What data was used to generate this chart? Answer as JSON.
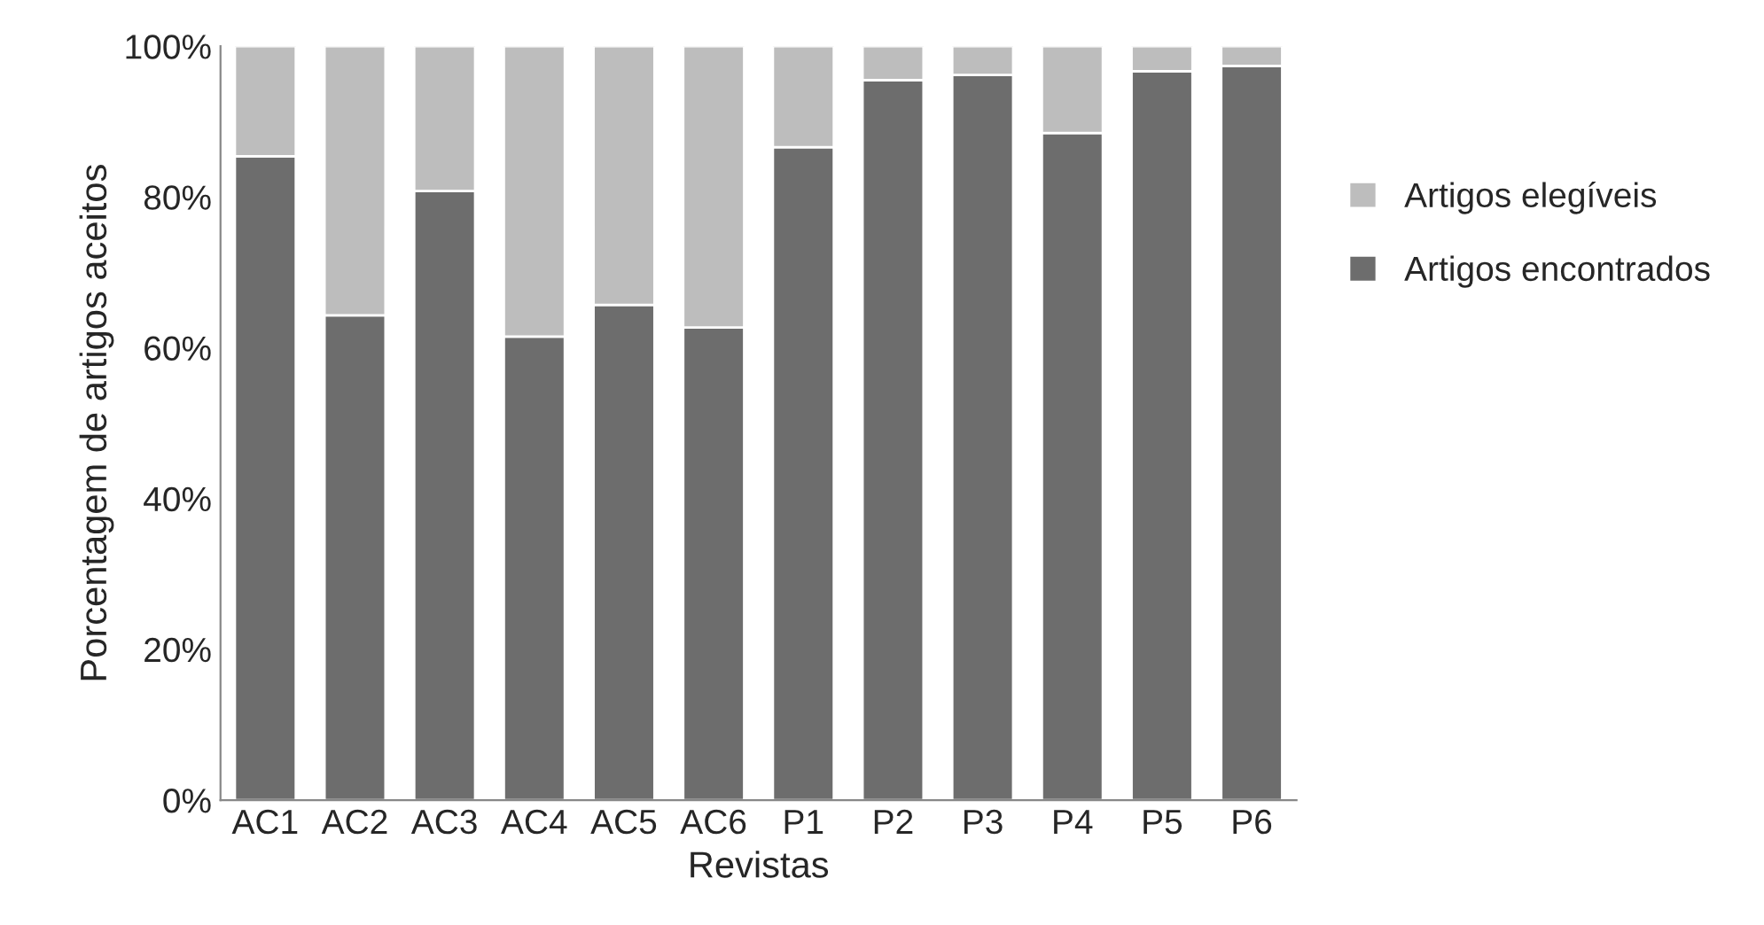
{
  "chart_data": {
    "type": "bar",
    "stacked": true,
    "xlabel": "Revistas",
    "ylabel": "Porcentagem de artigos aceitos",
    "categories": [
      "AC1",
      "AC2",
      "AC3",
      "AC4",
      "AC5",
      "AC6",
      "P1",
      "P2",
      "P3",
      "P4",
      "P5",
      "P6"
    ],
    "series": [
      {
        "name": "Artigos encontrados",
        "color": "#6d6d6d",
        "values": [
          85.4,
          64.3,
          80.8,
          61.5,
          65.7,
          62.7,
          86.6,
          95.5,
          96.2,
          88.5,
          96.7,
          97.4
        ]
      },
      {
        "name": "Artigos elegíveis",
        "color": "#bdbdbd",
        "values": [
          14.6,
          35.7,
          19.2,
          38.5,
          34.3,
          37.3,
          13.4,
          4.5,
          3.8,
          11.5,
          3.3,
          2.6
        ]
      }
    ],
    "ylim": [
      0,
      100
    ],
    "yticks": [
      {
        "value": 0,
        "label": "0%"
      },
      {
        "value": 20,
        "label": "20%"
      },
      {
        "value": 40,
        "label": "40%"
      },
      {
        "value": 60,
        "label": "60%"
      },
      {
        "value": 80,
        "label": "80%"
      },
      {
        "value": 100,
        "label": "100%"
      }
    ],
    "grid": false,
    "legend": "right"
  }
}
